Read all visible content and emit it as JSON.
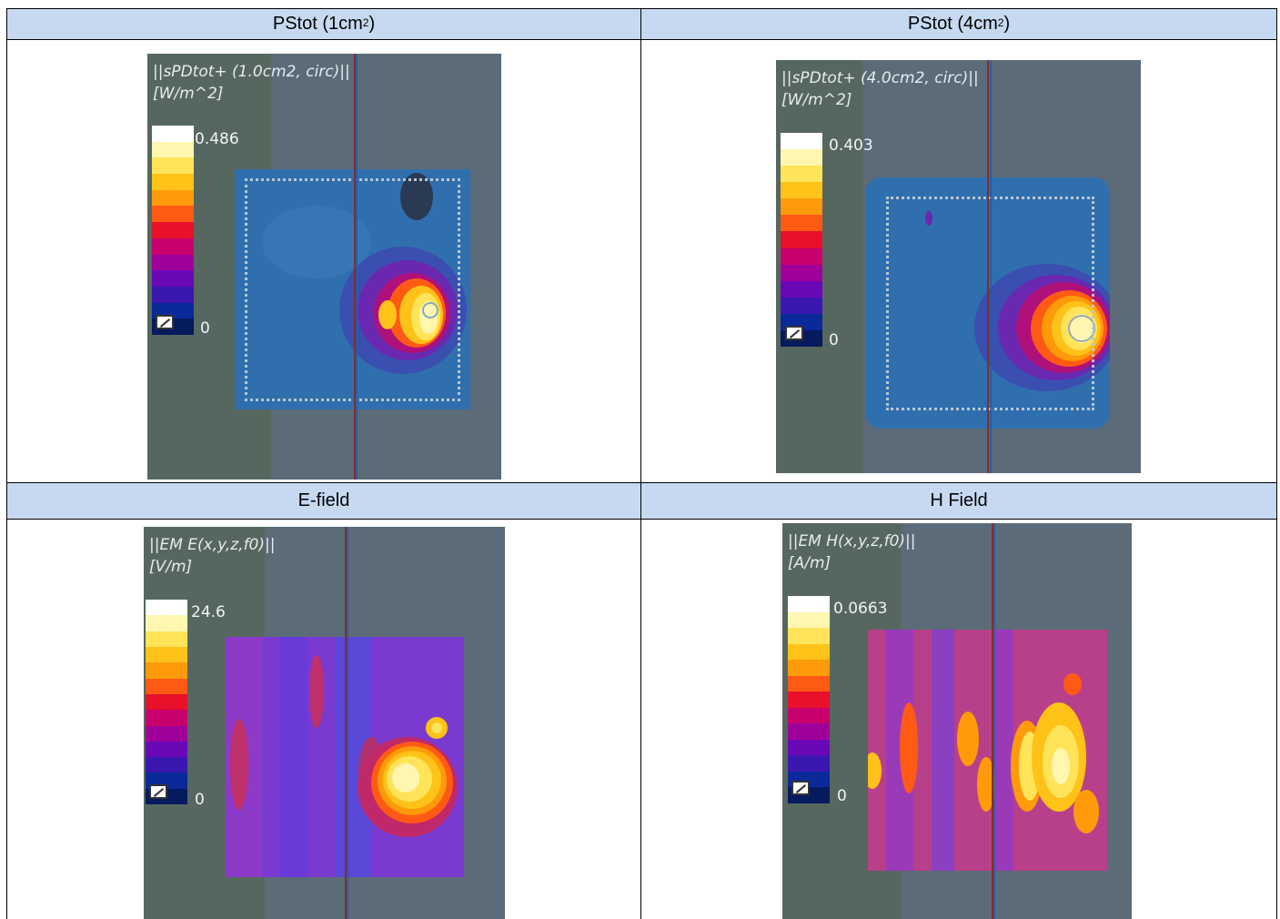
{
  "table": {
    "headers": [
      {
        "text": "PStot (1cm",
        "sup": "2",
        "close": ")"
      },
      {
        "text": "PStot (4cm",
        "sup": "2",
        "close": ")"
      },
      {
        "text": "E-field",
        "sup": "",
        "close": ""
      },
      {
        "text": "H Field",
        "sup": "",
        "close": ""
      }
    ]
  },
  "panels": [
    {
      "title": "||sPDtot+ (1.0cm2, circ)||",
      "unit": "[W/m^2]",
      "max": "0.486",
      "min": "0"
    },
    {
      "title": "||sPDtot+ (4.0cm2, circ)||",
      "unit": "[W/m^2]",
      "max": "0.403",
      "min": "0"
    },
    {
      "title": "||EM E(x,y,z,f0)||",
      "unit": "[V/m]",
      "max": "24.6",
      "min": "0"
    },
    {
      "title": "||EM H(x,y,z,f0)||",
      "unit": "[A/m]",
      "max": "0.0663",
      "min": "0"
    }
  ],
  "colorbar_colors": [
    "#ffffff",
    "#fff6b0",
    "#ffe45a",
    "#ffc219",
    "#ff9a0a",
    "#ff5a14",
    "#e8102a",
    "#c8006e",
    "#a0009a",
    "#6a08b8",
    "#3a18b0",
    "#0a2a9a",
    "#061a5e"
  ],
  "icons": {
    "colorbar_toggle": "colorbar-toggle-icon"
  }
}
